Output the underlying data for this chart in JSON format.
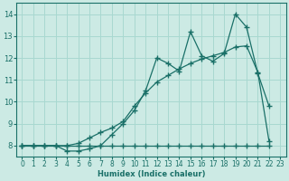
{
  "background_color": "#cceae4",
  "grid_color": "#a8d8d0",
  "line_color": "#1a7068",
  "xlabel": "Humidex (Indice chaleur)",
  "xlim": [
    -0.5,
    23.5
  ],
  "ylim": [
    7.5,
    14.5
  ],
  "xticks": [
    0,
    1,
    2,
    3,
    4,
    5,
    6,
    7,
    8,
    9,
    10,
    11,
    12,
    13,
    14,
    15,
    16,
    17,
    18,
    19,
    20,
    21,
    22,
    23
  ],
  "yticks": [
    8,
    9,
    10,
    11,
    12,
    13,
    14
  ],
  "line1_x": [
    0,
    1,
    2,
    3,
    4,
    5,
    6,
    7,
    8,
    9,
    10,
    11,
    12,
    13,
    14,
    15,
    16,
    17,
    18,
    19,
    20,
    21,
    22
  ],
  "line1_y": [
    8,
    8,
    8,
    8,
    8,
    8,
    8,
    8,
    8,
    8,
    8,
    8,
    8,
    8,
    8,
    8,
    8,
    8,
    8,
    8,
    8,
    8,
    8
  ],
  "line2_x": [
    0,
    1,
    2,
    3,
    4,
    5,
    6,
    7,
    8,
    9,
    10,
    11,
    12,
    13,
    14,
    15,
    16,
    17,
    18,
    19,
    20,
    21,
    22
  ],
  "line2_y": [
    8,
    8,
    8,
    8,
    7.75,
    7.75,
    7.85,
    8.0,
    8.5,
    9.0,
    9.6,
    10.5,
    12.0,
    11.75,
    11.4,
    13.2,
    12.1,
    11.85,
    12.2,
    14.0,
    13.4,
    11.3,
    9.8
  ],
  "line3_x": [
    0,
    1,
    2,
    3,
    4,
    5,
    6,
    7,
    8,
    9,
    10,
    11,
    12,
    13,
    14,
    15,
    16,
    17,
    18,
    19,
    20,
    21,
    22
  ],
  "line3_y": [
    8,
    8,
    8,
    8,
    8,
    8.1,
    8.35,
    8.6,
    8.8,
    9.1,
    9.8,
    10.4,
    10.9,
    11.2,
    11.5,
    11.75,
    11.95,
    12.1,
    12.25,
    12.5,
    12.55,
    11.35,
    8.2
  ]
}
